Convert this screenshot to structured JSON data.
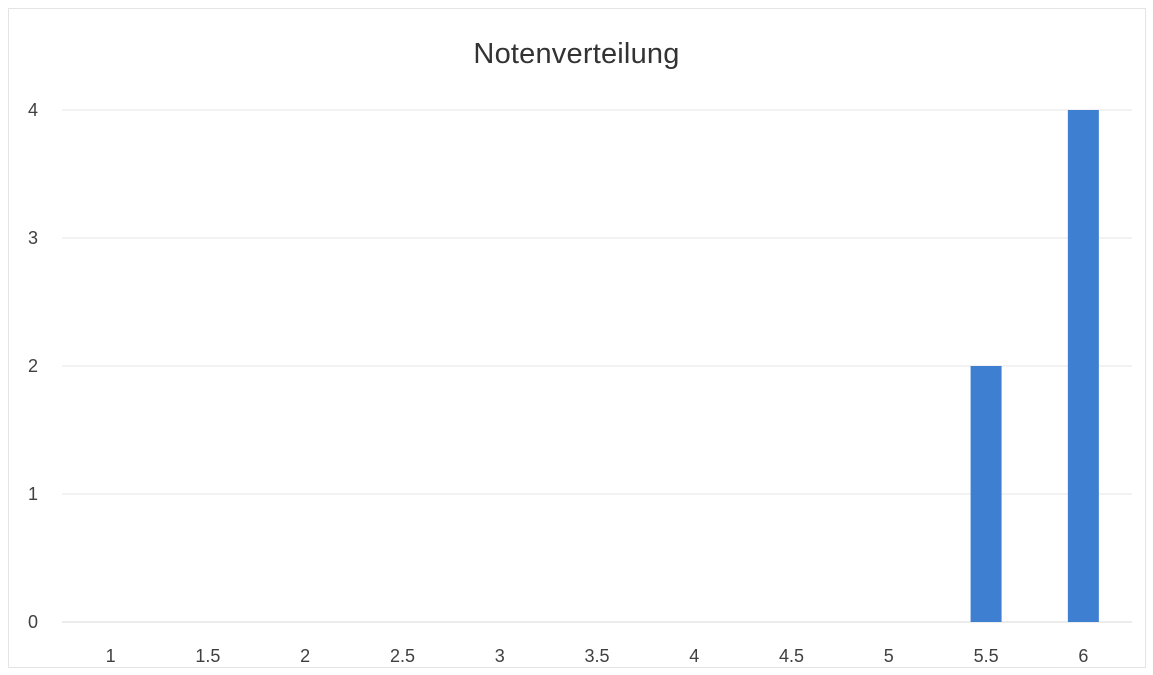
{
  "chart_data": {
    "type": "bar",
    "title": "Notenverteilung",
    "xlabel": "",
    "ylabel": "",
    "categories": [
      "1",
      "1.5",
      "2",
      "2.5",
      "3",
      "3.5",
      "4",
      "4.5",
      "5",
      "5.5",
      "6"
    ],
    "values": [
      0,
      0,
      0,
      0,
      0,
      0,
      0,
      0,
      0,
      2,
      4
    ],
    "ylim": [
      0,
      4
    ],
    "yticks": [
      "0",
      "1",
      "2",
      "3",
      "4"
    ],
    "grid": true,
    "legend": "none",
    "colors": {
      "bar": "#3f7fd1",
      "grid": "#e6e6e6"
    }
  }
}
